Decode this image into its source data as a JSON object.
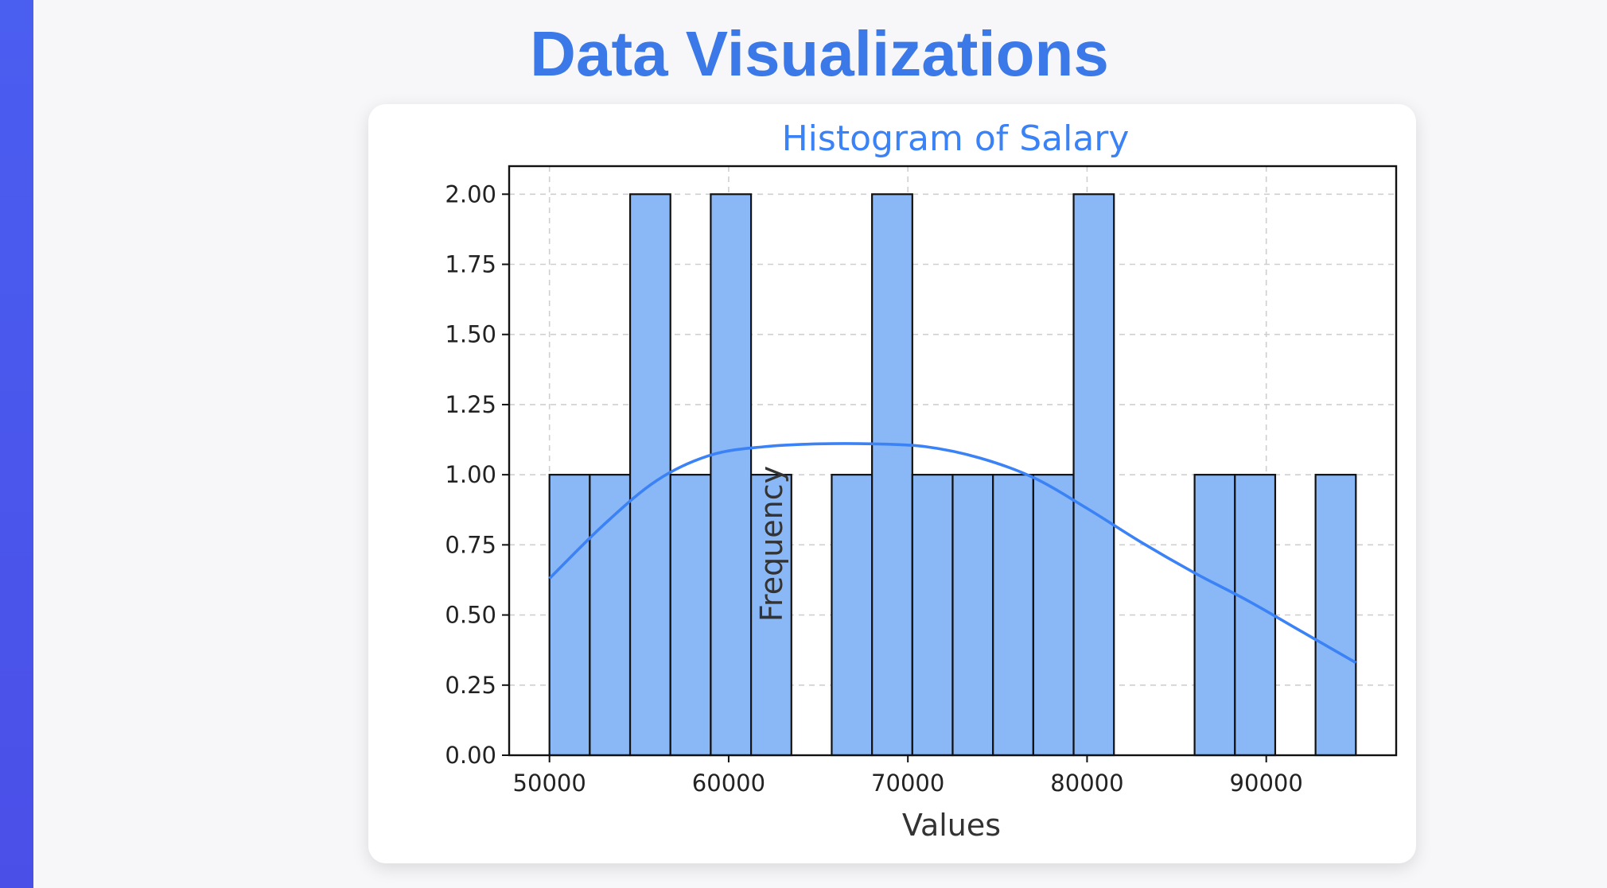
{
  "page": {
    "title": "Data Visualizations"
  },
  "colors": {
    "accent_bar": "#4a5ef0",
    "title": "#3b78e8",
    "bar_fill": "#8ab8f7",
    "kde_line": "#3b82f6"
  },
  "chart_data": {
    "type": "bar",
    "title": "Histogram of Salary",
    "xlabel": "Values",
    "ylabel": "Frequency",
    "bin_start": 50000,
    "bin_width": 2250,
    "values": [
      1,
      1,
      2,
      1,
      2,
      1,
      0,
      1,
      2,
      1,
      1,
      1,
      1,
      2,
      0,
      0,
      1,
      1,
      0,
      1
    ],
    "xlim": [
      47750,
      97250
    ],
    "ylim": [
      0,
      2.1
    ],
    "xticks": [
      "50000",
      "60000",
      "70000",
      "80000",
      "90000"
    ],
    "xtick_values": [
      50000,
      60000,
      70000,
      80000,
      90000
    ],
    "yticks": [
      "0.00",
      "0.25",
      "0.50",
      "0.75",
      "1.00",
      "1.25",
      "1.50",
      "1.75",
      "2.00"
    ],
    "ytick_values": [
      0,
      0.25,
      0.5,
      0.75,
      1.0,
      1.25,
      1.5,
      1.75,
      2.0
    ],
    "kde": {
      "x": [
        50000,
        53000,
        56000,
        59000,
        62000,
        65000,
        68000,
        71000,
        74000,
        77000,
        80000,
        83000,
        86000,
        89000,
        92000,
        95000
      ],
      "y": [
        0.63,
        0.82,
        0.98,
        1.07,
        1.1,
        1.11,
        1.11,
        1.1,
        1.06,
        0.99,
        0.88,
        0.76,
        0.65,
        0.55,
        0.44,
        0.33
      ]
    },
    "grid": true,
    "legend": "none"
  }
}
